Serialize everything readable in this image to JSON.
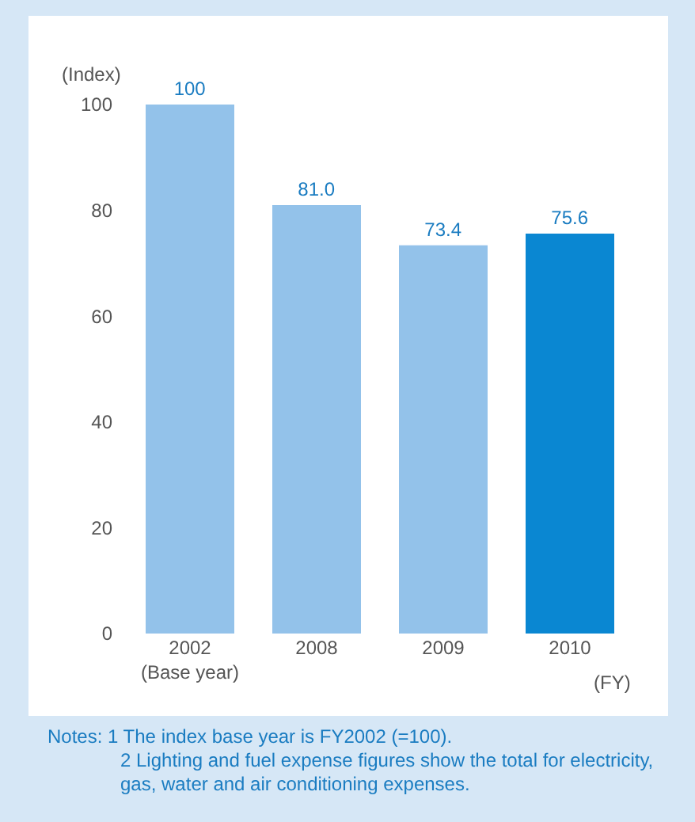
{
  "chart_data": {
    "type": "bar",
    "categories": [
      "2002\n(Base year)",
      "2008",
      "2009",
      "2010"
    ],
    "values": [
      100,
      81.0,
      73.4,
      75.6
    ],
    "value_labels": [
      "100",
      "81.0",
      "73.4",
      "75.6"
    ],
    "colors": [
      "#93c2ea",
      "#93c2ea",
      "#93c2ea",
      "#0a87d2"
    ],
    "ylabel": "(Index)",
    "xlabel": "(FY)",
    "ylim": [
      0,
      100
    ],
    "yticks": [
      0,
      20,
      40,
      60,
      80,
      100
    ],
    "grid": false,
    "annotations": [
      "Notes: 1 The index base year is FY2002 (=100).",
      "2 Lighting and fuel expense figures show the total for electricity, gas, water and air conditioning expenses."
    ]
  }
}
